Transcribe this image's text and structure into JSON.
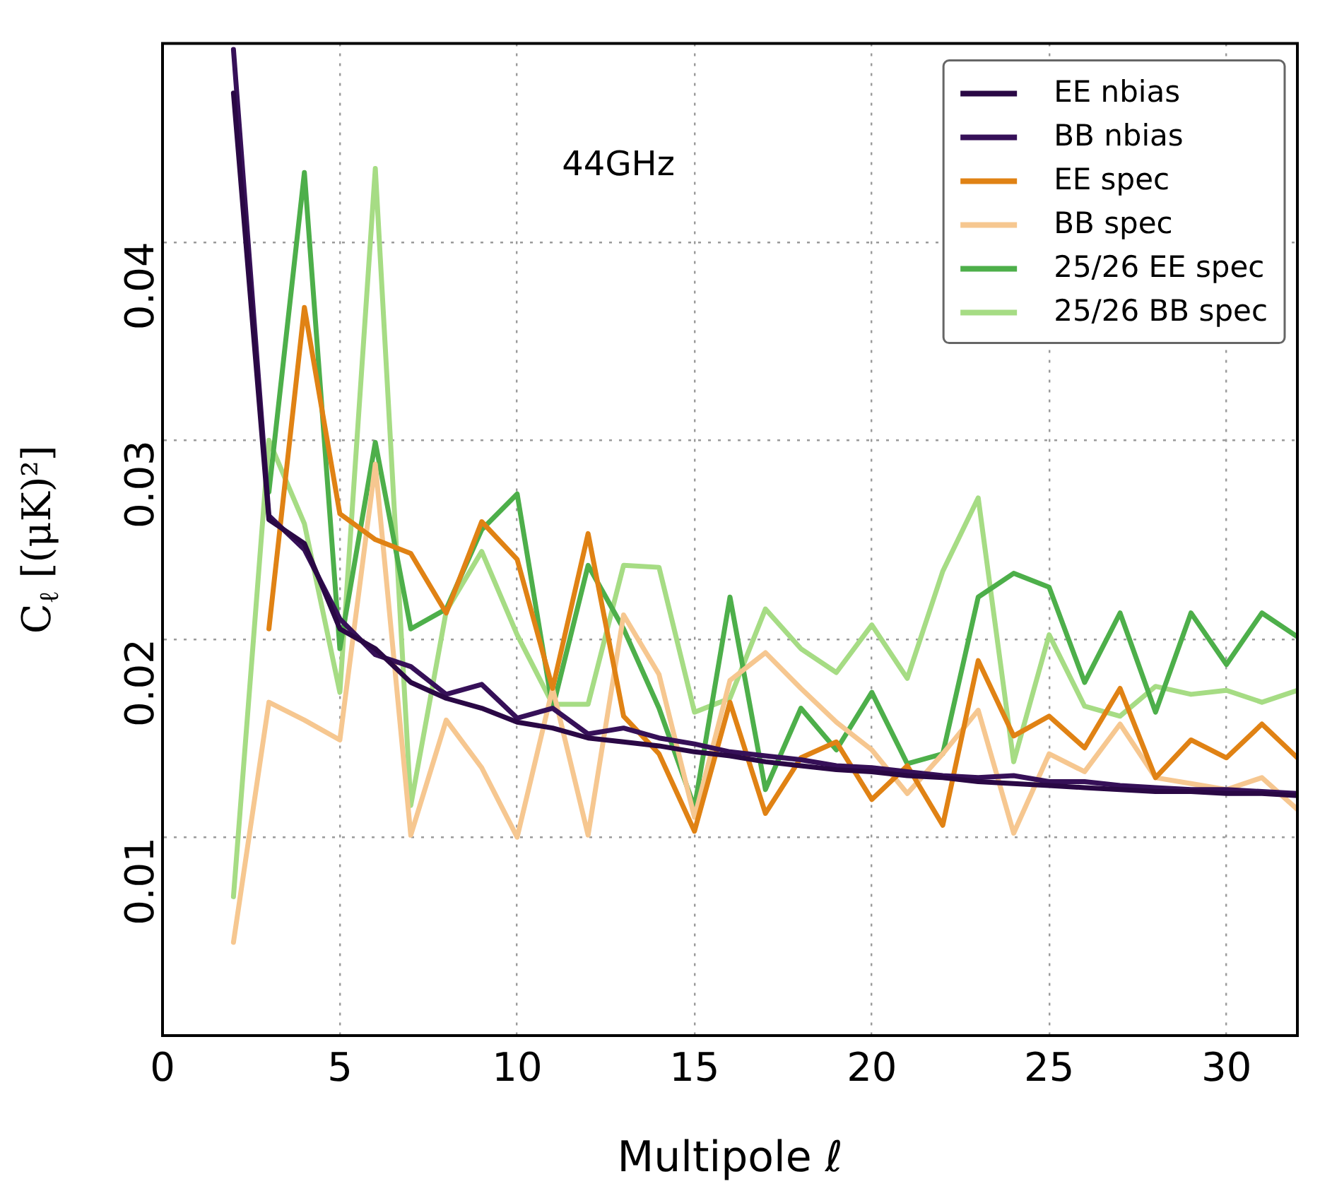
{
  "chart_data": {
    "type": "line",
    "xlabel": "Multipole ℓ",
    "ylabel": "C$_{ℓ}$ [(μK)²]",
    "annotations": [
      "44GHz"
    ],
    "x": [
      2,
      3,
      4,
      5,
      6,
      7,
      8,
      9,
      10,
      11,
      12,
      13,
      14,
      15,
      16,
      17,
      18,
      19,
      20,
      21,
      22,
      23,
      24,
      25,
      26,
      27,
      28,
      29,
      30,
      31,
      32
    ],
    "xlim": [
      0,
      32
    ],
    "xticks": [
      0,
      5,
      10,
      15,
      20,
      25,
      30
    ],
    "ylim": [
      0,
      0.05
    ],
    "yticks": [
      0.01,
      0.02,
      0.03,
      0.04
    ],
    "grid": true,
    "legend": "top right",
    "line_style": "solid",
    "marker": "none",
    "series": [
      {
        "name": "EE nbias",
        "color": "#2a0845",
        "values": [
          0.0475,
          0.026,
          0.0248,
          0.0205,
          0.0195,
          0.0178,
          0.017,
          0.0165,
          0.0158,
          0.0155,
          0.015,
          0.0148,
          0.0146,
          0.0143,
          0.0141,
          0.0138,
          0.0136,
          0.0134,
          0.0133,
          0.0131,
          0.013,
          0.0128,
          0.0127,
          0.0126,
          0.0125,
          0.0124,
          0.0123,
          0.0123,
          0.0122,
          0.0122,
          0.0121
        ]
      },
      {
        "name": "BB nbias",
        "color": "#361058",
        "values": [
          0.0497,
          0.0262,
          0.0245,
          0.021,
          0.0192,
          0.0186,
          0.0172,
          0.0177,
          0.016,
          0.0165,
          0.0152,
          0.0155,
          0.015,
          0.0147,
          0.0143,
          0.0141,
          0.0139,
          0.0136,
          0.0135,
          0.0133,
          0.0131,
          0.013,
          0.0131,
          0.0128,
          0.0128,
          0.0126,
          0.0125,
          0.0124,
          0.0124,
          0.0123,
          0.0122
        ]
      },
      {
        "name": "EE spec",
        "color": "#e08214",
        "values": [
          null,
          0.0205,
          0.0367,
          0.0263,
          0.025,
          0.0243,
          0.0213,
          0.0259,
          0.024,
          0.0175,
          0.0253,
          0.0161,
          0.0142,
          0.0103,
          0.0168,
          0.0112,
          0.014,
          0.0148,
          0.0119,
          0.0136,
          0.0106,
          0.0189,
          0.0151,
          0.0161,
          0.0145,
          0.0175,
          0.013,
          0.0149,
          0.014,
          0.0157,
          0.014
        ]
      },
      {
        "name": "BB spec",
        "color": "#f6c790",
        "values": [
          0.0047,
          0.0168,
          0.0159,
          0.0149,
          0.0288,
          0.0101,
          0.0159,
          0.0135,
          0.01,
          0.0175,
          0.0101,
          0.0212,
          0.0182,
          0.011,
          0.0179,
          0.0193,
          0.0175,
          0.0158,
          0.0144,
          0.0122,
          0.0142,
          0.0164,
          0.0102,
          0.0142,
          0.0133,
          0.0157,
          0.013,
          0.0127,
          0.0124,
          0.013,
          0.0114
        ]
      },
      {
        "name": "25/26 EE spec",
        "color": "#4daf4a",
        "values": [
          null,
          0.0274,
          0.0435,
          0.0195,
          0.0299,
          0.0205,
          0.0215,
          0.0255,
          0.0273,
          0.0165,
          0.0237,
          0.0205,
          0.0165,
          0.0115,
          0.0221,
          0.0124,
          0.0165,
          0.0144,
          0.0173,
          0.0137,
          0.0142,
          0.0221,
          0.0233,
          0.0226,
          0.0178,
          0.0213,
          0.0163,
          0.0213,
          0.0187,
          0.0213,
          0.0201
        ]
      },
      {
        "name": "25/26 BB spec",
        "color": "#a6dc84",
        "values": [
          0.007,
          0.03,
          0.0258,
          0.0173,
          0.0437,
          0.0116,
          0.0214,
          0.0244,
          0.0202,
          0.0167,
          0.0167,
          0.0237,
          0.0236,
          0.0163,
          0.017,
          0.0215,
          0.0195,
          0.0183,
          0.0207,
          0.018,
          0.0234,
          0.0271,
          0.0138,
          0.0202,
          0.0166,
          0.0161,
          0.0176,
          0.0172,
          0.0174,
          0.0168,
          0.0174
        ]
      }
    ]
  }
}
